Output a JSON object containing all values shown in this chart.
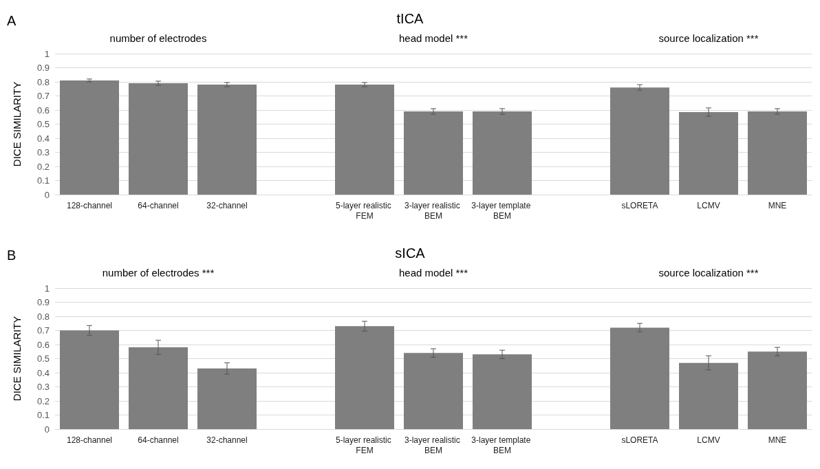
{
  "chart_data": [
    {
      "type": "bar",
      "title": "tICA",
      "ylabel": "DICE SIMILARITY",
      "annotations": [
        "A",
        "number of electrodes",
        "head model ***",
        "source localization ***"
      ],
      "categories": [
        "128-channel",
        "64-channel",
        "32-channel",
        null,
        "5-layer realistic FEM",
        "3-layer realistic BEM",
        "3-layer template BEM",
        null,
        "sLORETA",
        "LCMV",
        "MNE"
      ],
      "values": [
        0.81,
        0.79,
        0.78,
        null,
        0.78,
        0.59,
        0.59,
        null,
        0.76,
        0.585,
        0.59
      ],
      "errors": [
        0.01,
        0.015,
        0.015,
        null,
        0.015,
        0.02,
        0.02,
        null,
        0.02,
        0.03,
        0.02
      ],
      "color": "#7f7f7f",
      "ylim": [
        0,
        1
      ],
      "yticks": [
        0,
        0.1,
        0.2,
        0.3,
        0.4,
        0.5,
        0.6,
        0.7,
        0.8,
        0.9,
        1
      ],
      "grid": "y"
    },
    {
      "type": "bar",
      "title": "sICA",
      "ylabel": "DICE SIMILARITY",
      "annotations": [
        "B",
        "number of electrodes ***",
        "head model ***",
        "source localization ***"
      ],
      "categories": [
        "128-channel",
        "64-channel",
        "32-channel",
        null,
        "5-layer realistic FEM",
        "3-layer realistic BEM",
        "3-layer template BEM",
        null,
        "sLORETA",
        "LCMV",
        "MNE"
      ],
      "values": [
        0.7,
        0.58,
        0.43,
        null,
        0.73,
        0.54,
        0.53,
        null,
        0.72,
        0.47,
        0.55
      ],
      "errors": [
        0.035,
        0.05,
        0.04,
        null,
        0.035,
        0.03,
        0.03,
        null,
        0.03,
        0.05,
        0.03
      ],
      "color": "#7f7f7f",
      "ylim": [
        0,
        1
      ],
      "yticks": [
        0,
        0.1,
        0.2,
        0.3,
        0.4,
        0.5,
        0.6,
        0.7,
        0.8,
        0.9,
        1
      ],
      "grid": "y"
    }
  ]
}
